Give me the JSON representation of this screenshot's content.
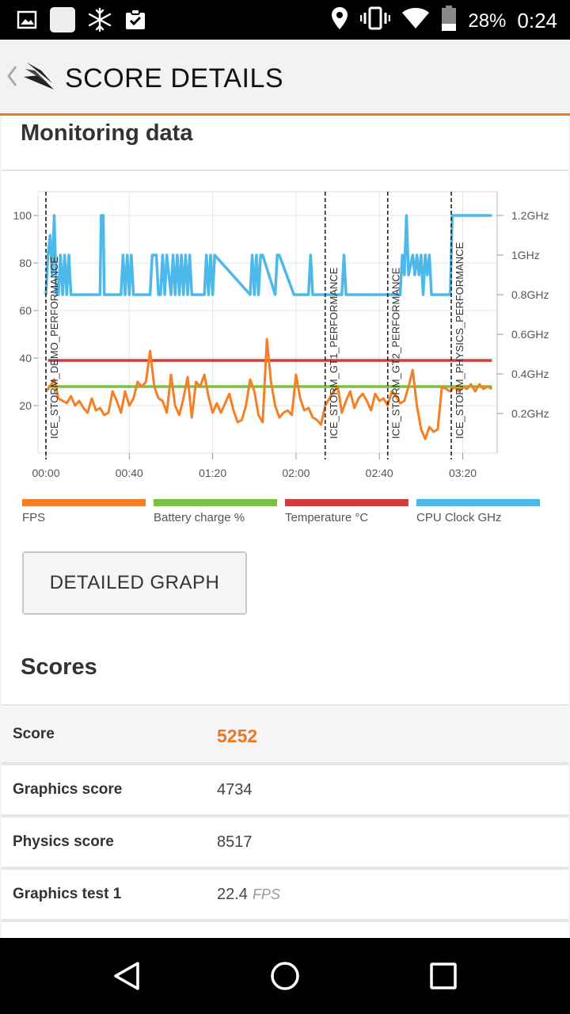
{
  "status_bar": {
    "battery_percent": "28%",
    "time": "0:24",
    "icons": [
      "image-icon",
      "app-square-icon",
      "snowflake-icon",
      "clipboard-check-icon",
      "location-pin-icon",
      "vibrate-icon",
      "wifi-icon",
      "battery-icon"
    ]
  },
  "header": {
    "title": "SCORE DETAILS",
    "icons": [
      "back-chevron-icon",
      "3dmark-logo-icon"
    ]
  },
  "monitoring": {
    "title": "Monitoring data",
    "legend": [
      {
        "label": "FPS",
        "color": "#f47f24"
      },
      {
        "label": "Battery charge %",
        "color": "#7ac143"
      },
      {
        "label": "Temperature °C",
        "color": "#d13d3d"
      },
      {
        "label": "CPU Clock GHz",
        "color": "#4db8ea"
      }
    ],
    "detailed_graph_label": "DETAILED GRAPH"
  },
  "chart_data": {
    "type": "line",
    "x_unit": "mm:ss",
    "x_ticks": [
      "00:00",
      "00:40",
      "01:20",
      "02:00",
      "02:40",
      "03:20"
    ],
    "xlim_seconds": [
      0,
      215
    ],
    "y_left_ticks": [
      "100",
      "80",
      "60",
      "40",
      "20"
    ],
    "ylim_left": [
      0,
      110
    ],
    "y_right_ticks": [
      "1.2GHz",
      "1GHz",
      "0.8GHz",
      "0.6GHz",
      "0.4GHz",
      "0.2GHz"
    ],
    "ylim_right_ghz": [
      0,
      1.32
    ],
    "test_markers": [
      {
        "label": "ICE_STORM_DEMO_PERFORMANCE",
        "x_seconds": 0
      },
      {
        "label": "ICE_STORM_GT1_PERFORMANCE",
        "x_seconds": 134
      },
      {
        "label": "ICE_STORM_GT2_PERFORMANCE",
        "x_seconds": 164
      },
      {
        "label": "ICE_STORM_PHYSICS_PERFORMANCE",
        "x_seconds": 194.5
      }
    ],
    "series": [
      {
        "name": "Temperature °C",
        "axis": "left",
        "x": [
          1,
          214
        ],
        "y": [
          39,
          39
        ]
      },
      {
        "name": "Battery charge %",
        "axis": "left",
        "x": [
          1,
          214
        ],
        "y": [
          28,
          28
        ]
      },
      {
        "name": "CPU Clock GHz",
        "axis": "right",
        "x": [
          0,
          1,
          2,
          3,
          4,
          5,
          6,
          7,
          8,
          9,
          10,
          11,
          12,
          26,
          26.5,
          27.5,
          28,
          36,
          37,
          38,
          39,
          40,
          41,
          42,
          43,
          50,
          51,
          53,
          54,
          55,
          56,
          57,
          58,
          60,
          61,
          62,
          63,
          64,
          65,
          66,
          67,
          68,
          69,
          70,
          71,
          76,
          77,
          78,
          79,
          80,
          81,
          98,
          99,
          100,
          101,
          102,
          103,
          104,
          110,
          111,
          112,
          119,
          120,
          126,
          127,
          128,
          134,
          142,
          143,
          144,
          170,
          171,
          172,
          173,
          174,
          176,
          177,
          178,
          179,
          180,
          181,
          182,
          183,
          184,
          185,
          194,
          195,
          214
        ],
        "y": [
          0.8,
          1.0,
          1.1,
          0.9,
          1.2,
          0.8,
          0.8,
          1.0,
          0.8,
          1.0,
          0.8,
          1.0,
          0.8,
          0.8,
          1.2,
          1.2,
          0.8,
          0.8,
          1.0,
          0.8,
          1.0,
          0.8,
          1.0,
          0.8,
          0.8,
          0.8,
          1.0,
          1.0,
          0.8,
          0.8,
          1.0,
          0.8,
          1.0,
          0.8,
          1.0,
          0.8,
          1.0,
          0.8,
          1.0,
          0.8,
          1.0,
          0.8,
          1.0,
          0.8,
          0.8,
          0.8,
          1.0,
          0.8,
          1.0,
          0.8,
          1.0,
          0.8,
          1.0,
          0.8,
          1.0,
          0.8,
          1.0,
          1.0,
          0.8,
          1.0,
          1.0,
          0.8,
          0.8,
          0.8,
          1.0,
          0.8,
          0.8,
          0.8,
          1.0,
          0.8,
          0.8,
          1.0,
          0.9,
          1.2,
          0.9,
          1.0,
          0.9,
          1.0,
          0.9,
          1.0,
          0.8,
          1.0,
          0.9,
          1.0,
          0.8,
          0.8,
          1.2,
          1.2
        ]
      },
      {
        "name": "FPS",
        "axis": "left",
        "x": [
          0,
          2,
          4,
          6,
          8,
          10,
          12,
          14,
          16,
          18,
          20,
          22,
          24,
          26,
          28,
          30,
          32,
          34,
          36,
          38,
          40,
          42,
          44,
          46,
          48,
          50,
          52,
          54,
          56,
          58,
          60,
          62,
          64,
          66,
          68,
          70,
          72,
          74,
          76,
          78,
          80,
          82,
          84,
          86,
          88,
          90,
          92,
          94,
          96,
          98,
          100,
          102,
          104,
          106,
          108,
          110,
          112,
          114,
          116,
          118,
          120,
          122,
          124,
          126,
          128,
          130,
          132,
          134,
          136,
          138,
          140,
          142,
          144,
          146,
          148,
          150,
          152,
          154,
          156,
          158,
          160,
          162,
          164,
          166,
          168,
          170,
          172,
          174,
          176,
          178,
          180,
          182,
          184,
          186,
          188,
          190,
          192,
          194,
          196,
          198,
          200,
          202,
          204,
          206,
          208,
          210,
          212,
          214
        ],
        "y": [
          26,
          28,
          31,
          23,
          22,
          21,
          24,
          20,
          22,
          19,
          17,
          23,
          18,
          19,
          16,
          17,
          26,
          22,
          17,
          26,
          20,
          23,
          30,
          28,
          30,
          43,
          28,
          23,
          22,
          17,
          33,
          20,
          16,
          23,
          32,
          15,
          30,
          28,
          33,
          24,
          17,
          21,
          17,
          21,
          25,
          18,
          13,
          14,
          20,
          31,
          26,
          16,
          13,
          48,
          30,
          20,
          15,
          17,
          18,
          16,
          33,
          23,
          18,
          19,
          15,
          14,
          12,
          20,
          23,
          26,
          28,
          17,
          22,
          26,
          19,
          23,
          25,
          22,
          18,
          25,
          22,
          23,
          20,
          26,
          24,
          21,
          22,
          28,
          35,
          20,
          10,
          6,
          11,
          9,
          10,
          28,
          27,
          26,
          28,
          26,
          28,
          27,
          29,
          26,
          29,
          27,
          28,
          27
        ]
      }
    ]
  },
  "scores": {
    "title": "Scores",
    "rows": [
      {
        "label": "Score",
        "value": "5252",
        "unit": ""
      },
      {
        "label": "Graphics score",
        "value": "4734",
        "unit": ""
      },
      {
        "label": "Physics score",
        "value": "8517",
        "unit": ""
      },
      {
        "label": "Graphics test 1",
        "value": "22.4",
        "unit": "FPS"
      }
    ]
  },
  "nav_bar": {
    "icons": [
      "back-triangle-icon",
      "home-circle-icon",
      "recents-square-icon"
    ]
  }
}
